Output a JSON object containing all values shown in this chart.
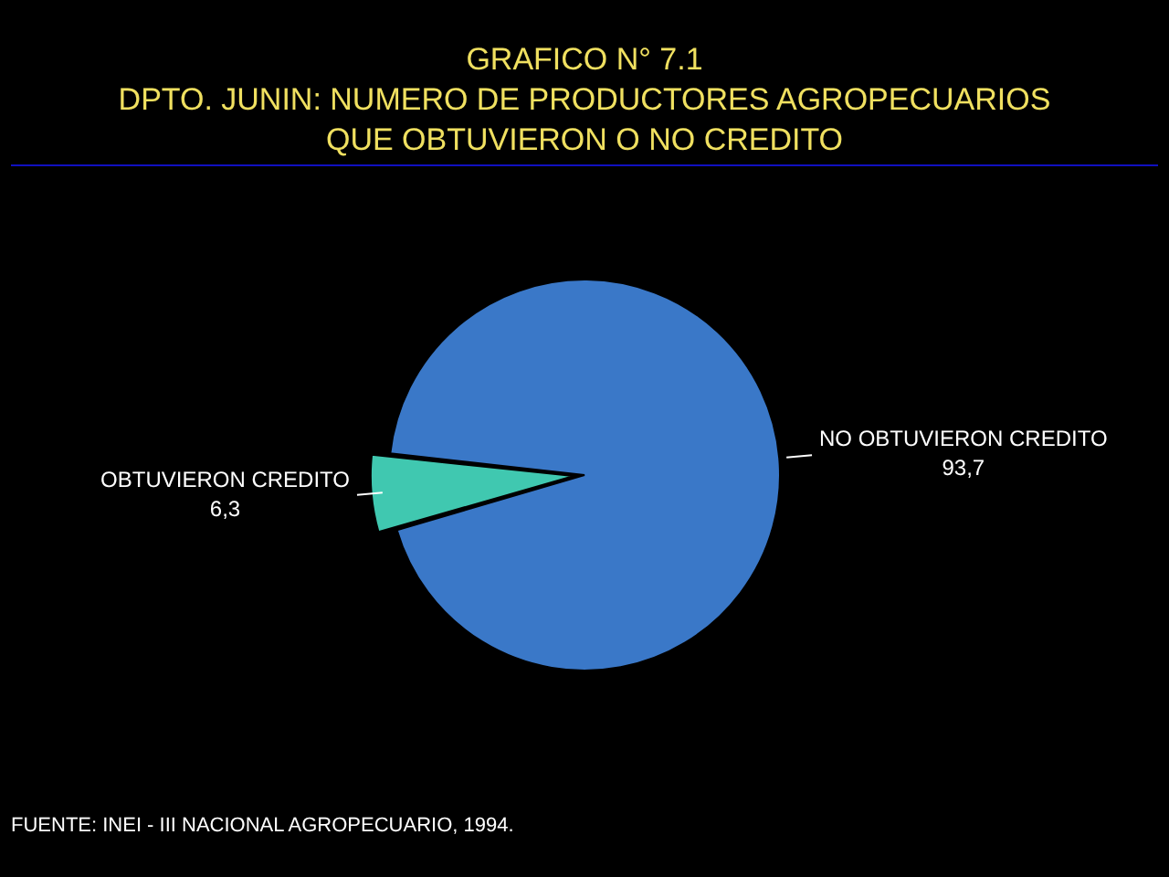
{
  "chart_data": {
    "type": "pie",
    "title": "GRAFICO N° 7.1",
    "subtitle": "DPTO. JUNIN: NUMERO DE PRODUCTORES AGROPECUARIOS QUE OBTUVIERON O NO CREDITO",
    "categories": [
      "OBTUVIERON CREDITO",
      "NO OBTUVIERON CREDITO"
    ],
    "values": [
      6.3,
      93.7
    ],
    "value_labels": [
      "6,3",
      "93,7"
    ],
    "colors": [
      "#40c8b0",
      "#3a78c8"
    ],
    "legend": false,
    "annotations": [
      "FUENTE: INEI - III NACIONAL AGROPECUARIO, 1994."
    ]
  }
}
